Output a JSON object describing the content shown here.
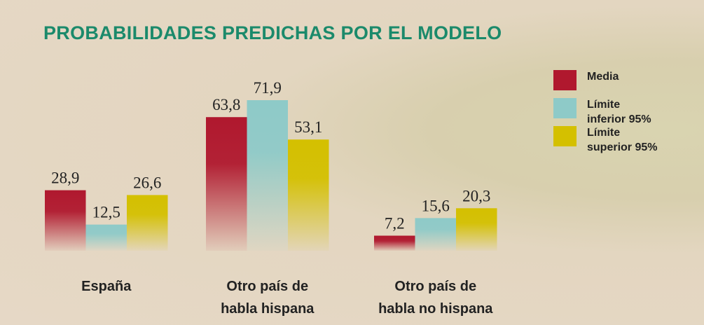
{
  "chart_data": {
    "type": "bar",
    "title": "PROBABILIDADES PREDICHAS POR EL MODELO",
    "categories": [
      "España",
      "Otro país de\nhabla hispana",
      "Otro país de\nhabla no hispana"
    ],
    "series": [
      {
        "name": "Media",
        "color": "#b0182e",
        "values": [
          28.9,
          63.8,
          7.2
        ],
        "value_labels": [
          "28,9",
          "63,8",
          "7,2"
        ]
      },
      {
        "name": "Límite\ninferior 95%",
        "color": "#8ecac8",
        "values": [
          12.5,
          71.9,
          15.6
        ],
        "value_labels": [
          "12,5",
          "71,9",
          "15,6"
        ]
      },
      {
        "name": "Límite\nsuperior 95%",
        "color": "#d4c000",
        "values": [
          26.6,
          53.1,
          20.3
        ],
        "value_labels": [
          "26,6",
          "53,1",
          "20,3"
        ]
      }
    ]
  }
}
